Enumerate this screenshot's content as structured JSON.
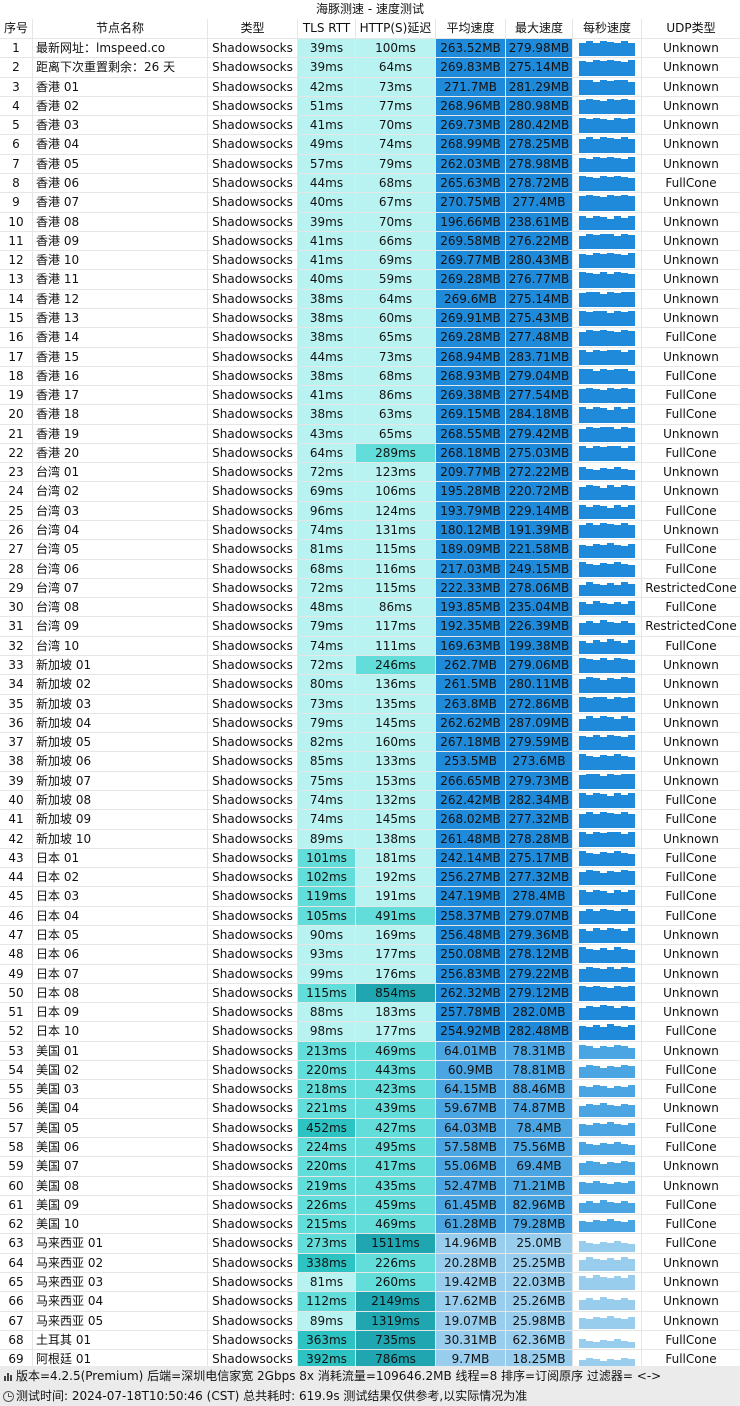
{
  "title": "海豚测速 - 速度测试",
  "headers": {
    "idx": "序号",
    "name": "节点名称",
    "type": "类型",
    "tls": "TLS RTT",
    "http": "HTTP(S)延迟",
    "avg": "平均速度",
    "max": "最大速度",
    "spark": "每秒速度",
    "udp": "UDP类型"
  },
  "colors": {
    "tls_light": "#b9f3f1",
    "tls_mid": "#63ddd9",
    "tls_dark": "#2dc3c3",
    "http_light": "#b9f3f1",
    "http_mid": "#63ddd9",
    "http_dark": "#1fa6b0",
    "speed_high": "#1f8ad9",
    "speed_mid": "#4aa5e2",
    "speed_low": "#99cdee",
    "footer_bg": "#ebebeb"
  },
  "rows": [
    [
      "1",
      "最新网址：lmspeed.co",
      "Shadowsocks",
      "39ms",
      "100ms",
      "263.52MB",
      "279.98MB",
      "Unknown"
    ],
    [
      "2",
      "距离下次重置剩余：26 天",
      "Shadowsocks",
      "39ms",
      "64ms",
      "269.83MB",
      "275.14MB",
      "Unknown"
    ],
    [
      "3",
      "香港 01",
      "Shadowsocks",
      "42ms",
      "73ms",
      "271.7MB",
      "281.29MB",
      "Unknown"
    ],
    [
      "4",
      "香港 02",
      "Shadowsocks",
      "51ms",
      "77ms",
      "268.96MB",
      "280.98MB",
      "Unknown"
    ],
    [
      "5",
      "香港 03",
      "Shadowsocks",
      "41ms",
      "70ms",
      "269.73MB",
      "280.42MB",
      "Unknown"
    ],
    [
      "6",
      "香港 04",
      "Shadowsocks",
      "49ms",
      "74ms",
      "268.99MB",
      "278.25MB",
      "Unknown"
    ],
    [
      "7",
      "香港 05",
      "Shadowsocks",
      "57ms",
      "79ms",
      "262.03MB",
      "278.98MB",
      "Unknown"
    ],
    [
      "8",
      "香港 06",
      "Shadowsocks",
      "44ms",
      "68ms",
      "265.63MB",
      "278.72MB",
      "FullCone"
    ],
    [
      "9",
      "香港 07",
      "Shadowsocks",
      "40ms",
      "67ms",
      "270.75MB",
      "277.4MB",
      "Unknown"
    ],
    [
      "10",
      "香港 08",
      "Shadowsocks",
      "39ms",
      "70ms",
      "196.66MB",
      "238.61MB",
      "Unknown"
    ],
    [
      "11",
      "香港 09",
      "Shadowsocks",
      "41ms",
      "66ms",
      "269.58MB",
      "276.22MB",
      "Unknown"
    ],
    [
      "12",
      "香港 10",
      "Shadowsocks",
      "41ms",
      "69ms",
      "269.77MB",
      "280.43MB",
      "Unknown"
    ],
    [
      "13",
      "香港 11",
      "Shadowsocks",
      "40ms",
      "59ms",
      "269.28MB",
      "276.77MB",
      "Unknown"
    ],
    [
      "14",
      "香港 12",
      "Shadowsocks",
      "38ms",
      "64ms",
      "269.6MB",
      "275.14MB",
      "Unknown"
    ],
    [
      "15",
      "香港 13",
      "Shadowsocks",
      "38ms",
      "60ms",
      "269.91MB",
      "275.43MB",
      "Unknown"
    ],
    [
      "16",
      "香港 14",
      "Shadowsocks",
      "38ms",
      "65ms",
      "269.28MB",
      "277.48MB",
      "FullCone"
    ],
    [
      "17",
      "香港 15",
      "Shadowsocks",
      "44ms",
      "73ms",
      "268.94MB",
      "283.71MB",
      "Unknown"
    ],
    [
      "18",
      "香港 16",
      "Shadowsocks",
      "38ms",
      "68ms",
      "268.93MB",
      "279.04MB",
      "FullCone"
    ],
    [
      "19",
      "香港 17",
      "Shadowsocks",
      "41ms",
      "86ms",
      "269.38MB",
      "277.54MB",
      "FullCone"
    ],
    [
      "20",
      "香港 18",
      "Shadowsocks",
      "38ms",
      "63ms",
      "269.15MB",
      "284.18MB",
      "FullCone"
    ],
    [
      "21",
      "香港 19",
      "Shadowsocks",
      "43ms",
      "65ms",
      "268.55MB",
      "279.42MB",
      "Unknown"
    ],
    [
      "22",
      "香港 20",
      "Shadowsocks",
      "64ms",
      "289ms",
      "268.18MB",
      "275.03MB",
      "FullCone"
    ],
    [
      "23",
      "台湾 01",
      "Shadowsocks",
      "72ms",
      "123ms",
      "209.77MB",
      "272.22MB",
      "Unknown"
    ],
    [
      "24",
      "台湾 02",
      "Shadowsocks",
      "69ms",
      "106ms",
      "195.28MB",
      "220.72MB",
      "Unknown"
    ],
    [
      "25",
      "台湾 03",
      "Shadowsocks",
      "96ms",
      "124ms",
      "193.79MB",
      "229.14MB",
      "FullCone"
    ],
    [
      "26",
      "台湾 04",
      "Shadowsocks",
      "74ms",
      "131ms",
      "180.12MB",
      "191.39MB",
      "Unknown"
    ],
    [
      "27",
      "台湾 05",
      "Shadowsocks",
      "81ms",
      "115ms",
      "189.09MB",
      "221.58MB",
      "FullCone"
    ],
    [
      "28",
      "台湾 06",
      "Shadowsocks",
      "68ms",
      "116ms",
      "217.03MB",
      "249.15MB",
      "FullCone"
    ],
    [
      "29",
      "台湾 07",
      "Shadowsocks",
      "72ms",
      "115ms",
      "222.33MB",
      "278.06MB",
      "RestrictedCone"
    ],
    [
      "30",
      "台湾 08",
      "Shadowsocks",
      "48ms",
      "86ms",
      "193.85MB",
      "235.04MB",
      "FullCone"
    ],
    [
      "31",
      "台湾 09",
      "Shadowsocks",
      "79ms",
      "117ms",
      "192.35MB",
      "226.39MB",
      "RestrictedCone"
    ],
    [
      "32",
      "台湾 10",
      "Shadowsocks",
      "74ms",
      "111ms",
      "169.63MB",
      "199.38MB",
      "FullCone"
    ],
    [
      "33",
      "新加坡 01",
      "Shadowsocks",
      "72ms",
      "246ms",
      "262.7MB",
      "279.06MB",
      "Unknown"
    ],
    [
      "34",
      "新加坡 02",
      "Shadowsocks",
      "80ms",
      "136ms",
      "261.5MB",
      "280.11MB",
      "Unknown"
    ],
    [
      "35",
      "新加坡 03",
      "Shadowsocks",
      "73ms",
      "135ms",
      "263.8MB",
      "272.86MB",
      "Unknown"
    ],
    [
      "36",
      "新加坡 04",
      "Shadowsocks",
      "79ms",
      "145ms",
      "262.62MB",
      "287.09MB",
      "Unknown"
    ],
    [
      "37",
      "新加坡 05",
      "Shadowsocks",
      "82ms",
      "160ms",
      "267.18MB",
      "279.59MB",
      "Unknown"
    ],
    [
      "38",
      "新加坡 06",
      "Shadowsocks",
      "85ms",
      "133ms",
      "253.5MB",
      "273.6MB",
      "Unknown"
    ],
    [
      "39",
      "新加坡 07",
      "Shadowsocks",
      "75ms",
      "153ms",
      "266.65MB",
      "279.73MB",
      "Unknown"
    ],
    [
      "40",
      "新加坡 08",
      "Shadowsocks",
      "74ms",
      "132ms",
      "262.42MB",
      "282.34MB",
      "FullCone"
    ],
    [
      "41",
      "新加坡 09",
      "Shadowsocks",
      "74ms",
      "145ms",
      "268.02MB",
      "277.32MB",
      "FullCone"
    ],
    [
      "42",
      "新加坡 10",
      "Shadowsocks",
      "89ms",
      "138ms",
      "261.48MB",
      "278.28MB",
      "Unknown"
    ],
    [
      "43",
      "日本 01",
      "Shadowsocks",
      "101ms",
      "181ms",
      "242.14MB",
      "275.17MB",
      "FullCone"
    ],
    [
      "44",
      "日本 02",
      "Shadowsocks",
      "102ms",
      "192ms",
      "256.27MB",
      "277.32MB",
      "FullCone"
    ],
    [
      "45",
      "日本 03",
      "Shadowsocks",
      "119ms",
      "191ms",
      "247.19MB",
      "278.4MB",
      "FullCone"
    ],
    [
      "46",
      "日本 04",
      "Shadowsocks",
      "105ms",
      "491ms",
      "258.37MB",
      "279.07MB",
      "FullCone"
    ],
    [
      "47",
      "日本 05",
      "Shadowsocks",
      "90ms",
      "169ms",
      "256.48MB",
      "279.36MB",
      "Unknown"
    ],
    [
      "48",
      "日本 06",
      "Shadowsocks",
      "93ms",
      "177ms",
      "250.08MB",
      "278.12MB",
      "Unknown"
    ],
    [
      "49",
      "日本 07",
      "Shadowsocks",
      "99ms",
      "176ms",
      "256.83MB",
      "279.22MB",
      "Unknown"
    ],
    [
      "50",
      "日本 08",
      "Shadowsocks",
      "115ms",
      "854ms",
      "262.32MB",
      "279.12MB",
      "Unknown"
    ],
    [
      "51",
      "日本 09",
      "Shadowsocks",
      "88ms",
      "183ms",
      "257.78MB",
      "282.0MB",
      "Unknown"
    ],
    [
      "52",
      "日本 10",
      "Shadowsocks",
      "98ms",
      "177ms",
      "254.92MB",
      "282.48MB",
      "FullCone"
    ],
    [
      "53",
      "美国 01",
      "Shadowsocks",
      "213ms",
      "469ms",
      "64.01MB",
      "78.31MB",
      "Unknown"
    ],
    [
      "54",
      "美国 02",
      "Shadowsocks",
      "220ms",
      "443ms",
      "60.9MB",
      "78.81MB",
      "FullCone"
    ],
    [
      "55",
      "美国 03",
      "Shadowsocks",
      "218ms",
      "423ms",
      "64.15MB",
      "88.46MB",
      "FullCone"
    ],
    [
      "56",
      "美国 04",
      "Shadowsocks",
      "221ms",
      "439ms",
      "59.67MB",
      "74.87MB",
      "Unknown"
    ],
    [
      "57",
      "美国 05",
      "Shadowsocks",
      "452ms",
      "427ms",
      "64.03MB",
      "78.4MB",
      "FullCone"
    ],
    [
      "58",
      "美国 06",
      "Shadowsocks",
      "224ms",
      "495ms",
      "57.58MB",
      "75.56MB",
      "FullCone"
    ],
    [
      "59",
      "美国 07",
      "Shadowsocks",
      "220ms",
      "417ms",
      "55.06MB",
      "69.4MB",
      "Unknown"
    ],
    [
      "60",
      "美国 08",
      "Shadowsocks",
      "219ms",
      "435ms",
      "52.47MB",
      "71.21MB",
      "Unknown"
    ],
    [
      "61",
      "美国 09",
      "Shadowsocks",
      "226ms",
      "459ms",
      "61.45MB",
      "82.96MB",
      "FullCone"
    ],
    [
      "62",
      "美国 10",
      "Shadowsocks",
      "215ms",
      "469ms",
      "61.28MB",
      "79.28MB",
      "FullCone"
    ],
    [
      "63",
      "马来西亚 01",
      "Shadowsocks",
      "273ms",
      "1511ms",
      "14.96MB",
      "25.0MB",
      "FullCone"
    ],
    [
      "64",
      "马来西亚 02",
      "Shadowsocks",
      "338ms",
      "226ms",
      "20.28MB",
      "25.25MB",
      "Unknown"
    ],
    [
      "65",
      "马来西亚 03",
      "Shadowsocks",
      "81ms",
      "260ms",
      "19.42MB",
      "22.03MB",
      "Unknown"
    ],
    [
      "66",
      "马来西亚 04",
      "Shadowsocks",
      "112ms",
      "2149ms",
      "17.62MB",
      "25.26MB",
      "Unknown"
    ],
    [
      "67",
      "马来西亚 05",
      "Shadowsocks",
      "89ms",
      "1319ms",
      "19.07MB",
      "25.98MB",
      "Unknown"
    ],
    [
      "68",
      "土耳其 01",
      "Shadowsocks",
      "363ms",
      "735ms",
      "30.31MB",
      "62.36MB",
      "FullCone"
    ],
    [
      "69",
      "阿根廷 01",
      "Shadowsocks",
      "392ms",
      "786ms",
      "9.7MB",
      "18.25MB",
      "FullCone"
    ]
  ],
  "footer": {
    "line1": "版本=4.2.5(Premium)  后端=深圳电信家宽 2Gbps 8x  消耗流量=109646.2MB  线程=8  排序=订阅原序  过滤器= <->",
    "line2": "测试时间: 2024-07-18T10:50:46 (CST) 总共耗时: 619.9s 测试结果仅供参考,以实际情况为准"
  }
}
